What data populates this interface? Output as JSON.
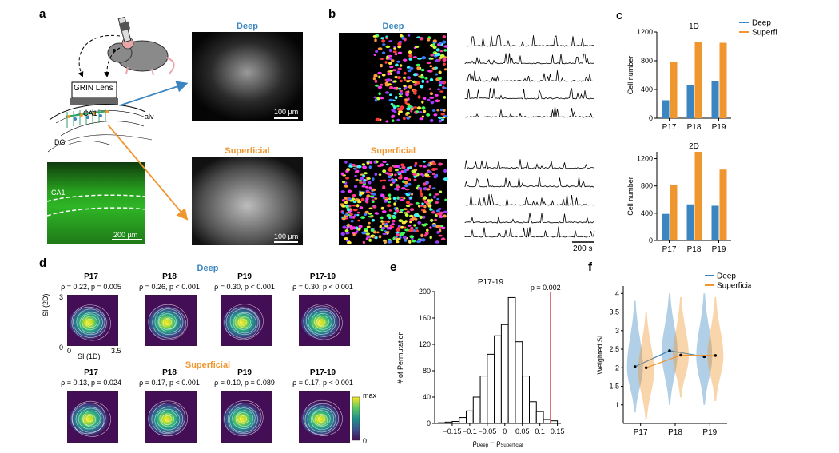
{
  "panel_letters": {
    "a": "a",
    "b": "b",
    "c": "c",
    "d": "d",
    "e": "e",
    "f": "f"
  },
  "colors": {
    "deep": "#3b86c0",
    "superficial": "#f0962f",
    "line_red": "#d9686e",
    "viridis_dark": "#440e56",
    "viridis_bright": "#fde725",
    "tissue_green": "#27a01e"
  },
  "panel_a": {
    "grin_lens": "GRIN Lens",
    "ca1": "CA1",
    "alv": "alv",
    "dg": "DG",
    "histology_label": "CA1",
    "histology_scalebar": "200 µm",
    "deep_title": "Deep",
    "deep_scalebar": "100 µm",
    "superficial_title": "Superficial",
    "superficial_scalebar": "100 µm"
  },
  "panel_b": {
    "deep_title": "Deep",
    "superficial_title": "Superficial",
    "time_scalebar": "200 s"
  },
  "panel_d": {
    "deep_title": "Deep",
    "superficial_title": "Superficial",
    "ylabel": "SI (2D)",
    "xlabel": "SI (1D)",
    "tick_0": "0",
    "tick_35": "3.5",
    "tick_3": "3",
    "colorbar_max": "max",
    "colorbar_min": "0",
    "deep_plots": [
      {
        "age": "P17",
        "stats": "ρ = 0.22, p = 0.005"
      },
      {
        "age": "P18",
        "stats": "ρ = 0.26, p < 0.001"
      },
      {
        "age": "P19",
        "stats": "ρ = 0.30, p < 0.001"
      },
      {
        "age": "P17-19",
        "stats": "ρ = 0.30, p < 0.001"
      }
    ],
    "sup_plots": [
      {
        "age": "P17",
        "stats": "ρ = 0.13, p = 0.024"
      },
      {
        "age": "P18",
        "stats": "ρ = 0.17, p < 0.001"
      },
      {
        "age": "P19",
        "stats": "ρ = 0.10, p = 0.089"
      },
      {
        "age": "P17-19",
        "stats": "ρ = 0.17, p < 0.001"
      }
    ]
  },
  "chart_data": [
    {
      "id": "c-1D",
      "type": "bar",
      "title": "1D",
      "categories": [
        "P17",
        "P18",
        "P19"
      ],
      "series": [
        {
          "name": "Deep",
          "values": [
            250,
            460,
            520
          ]
        },
        {
          "name": "Superficial",
          "values": [
            780,
            1060,
            1050
          ]
        }
      ],
      "ylabel": "Cell number",
      "ylim": [
        0,
        1200
      ],
      "yticks": [
        0,
        400,
        800,
        1200
      ],
      "legend": "top-right"
    },
    {
      "id": "c-2D",
      "type": "bar",
      "title": "2D",
      "categories": [
        "P17",
        "P18",
        "P19"
      ],
      "series": [
        {
          "name": "Deep",
          "values": [
            390,
            530,
            510
          ]
        },
        {
          "name": "Superficial",
          "values": [
            820,
            1300,
            1040
          ]
        }
      ],
      "ylabel": "Cell number",
      "ylim": [
        0,
        1300
      ],
      "yticks": [
        0,
        400,
        800,
        1200
      ]
    },
    {
      "id": "e",
      "type": "bar",
      "title": "P17-19",
      "xlabel_main": "ρ",
      "xlabel_sub1": "Deep",
      "xlabel_mid": " − ρ",
      "xlabel_sub2": "Superficial",
      "ylabel": "# of Permutation",
      "annotation": "p = 0.002",
      "observed_x": 0.13,
      "bin_edges": [
        -0.19,
        -0.17,
        -0.15,
        -0.13,
        -0.11,
        -0.09,
        -0.07,
        -0.05,
        -0.03,
        -0.01,
        0.01,
        0.03,
        0.05,
        0.07,
        0.09,
        0.11,
        0.13,
        0.15
      ],
      "counts": [
        1,
        2,
        3,
        9,
        19,
        40,
        72,
        105,
        133,
        150,
        191,
        124,
        72,
        33,
        18,
        6,
        4
      ],
      "xlim": [
        -0.2,
        0.16
      ],
      "ylim": [
        0,
        200
      ],
      "xticks": [
        -0.15,
        -0.1,
        -0.05,
        0,
        0.05,
        0.1,
        0.15
      ],
      "xtick_labels": [
        "−0.15",
        "−0.1",
        "−0.05",
        "0",
        "0.05",
        "0.1",
        "0.15"
      ],
      "yticks": [
        0,
        40,
        80,
        120,
        160,
        200
      ]
    },
    {
      "id": "f",
      "type": "violin",
      "categories": [
        "P17",
        "P18",
        "P19"
      ],
      "ylabel": "Weighted SI",
      "ylim": [
        0.5,
        4.2
      ],
      "yticks": [
        1,
        1.5,
        2,
        2.5,
        3,
        3.5,
        4
      ],
      "legend": "top-right",
      "series": [
        {
          "name": "Deep",
          "means": [
            2.03,
            2.46,
            2.3
          ],
          "ranges": [
            [
              0.8,
              3.8
            ],
            [
              1.0,
              4.0
            ],
            [
              1.0,
              4.0
            ]
          ],
          "peaks": [
            2.0,
            2.4,
            2.3
          ]
        },
        {
          "name": "Superficial",
          "means": [
            2.0,
            2.34,
            2.33
          ],
          "ranges": [
            [
              0.6,
              3.5
            ],
            [
              1.2,
              3.9
            ],
            [
              1.1,
              3.9
            ]
          ],
          "peaks": [
            1.9,
            2.3,
            2.3
          ]
        }
      ]
    }
  ]
}
